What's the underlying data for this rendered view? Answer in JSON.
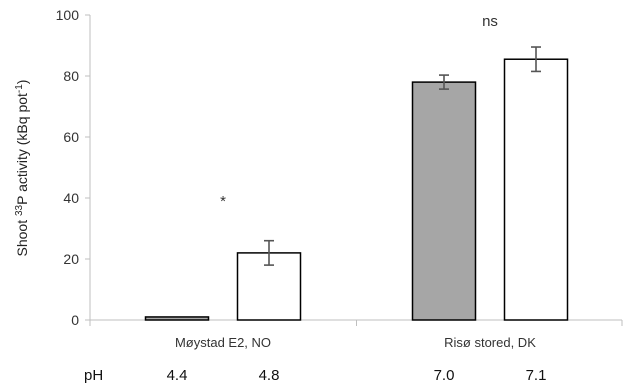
{
  "chart_data": {
    "type": "bar",
    "categories": [
      "Møystad E2, NO",
      "Risø stored, DK"
    ],
    "ylabel": {
      "before": "Shoot ",
      "sup1": "33",
      "middle": "P activity (kBq pot",
      "sup2": "-1",
      "after": ")"
    },
    "ylim": [
      0,
      100
    ],
    "yticks": [
      "0",
      "20",
      "40",
      "60",
      "80",
      "100"
    ],
    "grid": false,
    "bars": [
      {
        "category": "Møystad E2, NO",
        "ph": "4.4",
        "value": 1.0,
        "error": 0,
        "fill": "#a6a6a6"
      },
      {
        "category": "Møystad E2, NO",
        "ph": "4.8",
        "value": 22,
        "error": 4,
        "fill": "#ffffff"
      },
      {
        "category": "Risø stored, DK",
        "ph": "7.0",
        "value": 78,
        "error": 2.3,
        "fill": "#a6a6a6"
      },
      {
        "category": "Risø stored, DK",
        "ph": "7.1",
        "value": 85.5,
        "error": 4,
        "fill": "#ffffff"
      }
    ],
    "annotations": [
      {
        "category": "Møystad E2, NO",
        "text": "*",
        "y": 40
      },
      {
        "category": "Risø stored, DK",
        "text": "ns",
        "y": 99
      }
    ],
    "ph_label": "pH"
  },
  "colors": {
    "axis": "#bfbfbf",
    "bar_stroke": "#000000",
    "error_bar": "#555555"
  }
}
